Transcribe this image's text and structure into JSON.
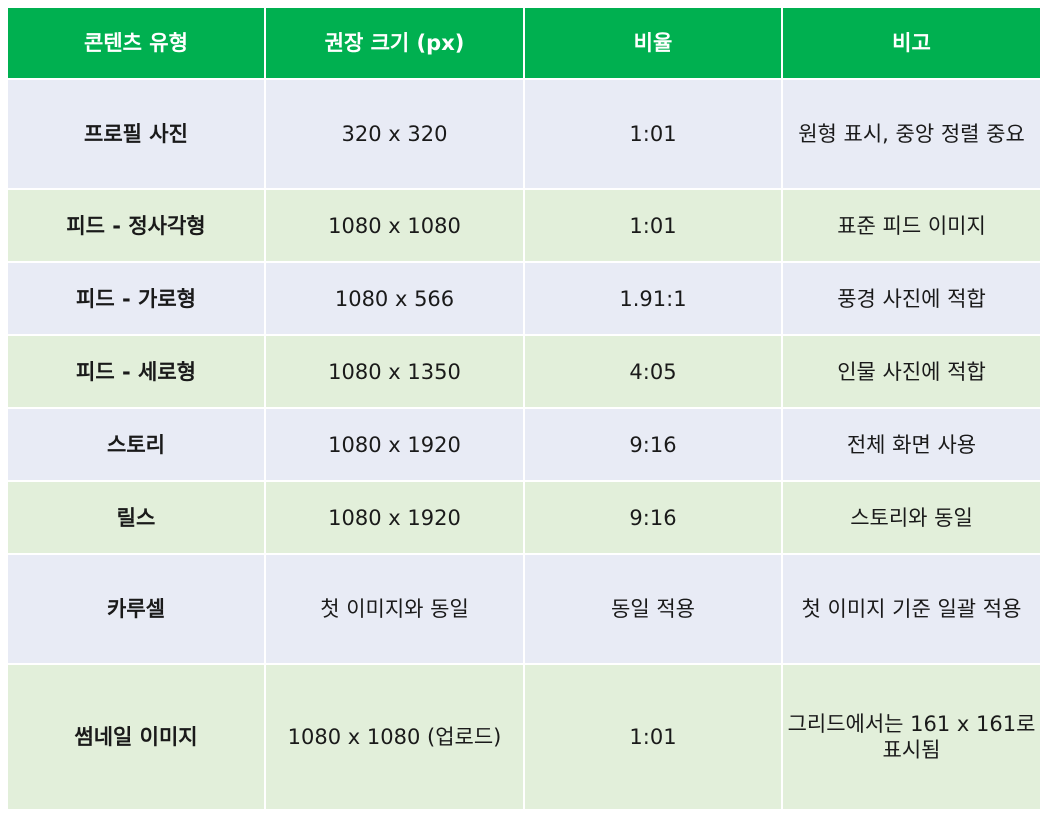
{
  "table": {
    "headers": [
      "콘텐츠 유형",
      "권장 크기 (px)",
      "비율",
      "비고"
    ],
    "rows": [
      {
        "type": "프로필 사진",
        "size": "320 x 320",
        "ratio": "1:01",
        "note": "원형 표시, 중앙 정렬 중요"
      },
      {
        "type": "피드 - 정사각형",
        "size": "1080 x 1080",
        "ratio": "1:01",
        "note": "표준 피드 이미지"
      },
      {
        "type": "피드 - 가로형",
        "size": "1080 x 566",
        "ratio": "1.91:1",
        "note": "풍경 사진에 적합"
      },
      {
        "type": "피드 - 세로형",
        "size": "1080 x 1350",
        "ratio": "4:05",
        "note": "인물 사진에 적합"
      },
      {
        "type": "스토리",
        "size": "1080 x 1920",
        "ratio": "9:16",
        "note": "전체 화면 사용"
      },
      {
        "type": "릴스",
        "size": "1080 x 1920",
        "ratio": "9:16",
        "note": "스토리와 동일"
      },
      {
        "type": "카루셀",
        "size": "첫 이미지와 동일",
        "ratio": "동일 적용",
        "note": "첫 이미지 기준 일괄 적용"
      },
      {
        "type": "썸네일 이미지",
        "size": "1080 x 1080 (업로드)",
        "ratio": "1:01",
        "note": "그리드에서는 161 x 161로 표시됨"
      }
    ]
  },
  "colors": {
    "header_bg": "#00b050",
    "row_odd_bg": "#e8ebf5",
    "row_even_bg": "#e2efda"
  }
}
